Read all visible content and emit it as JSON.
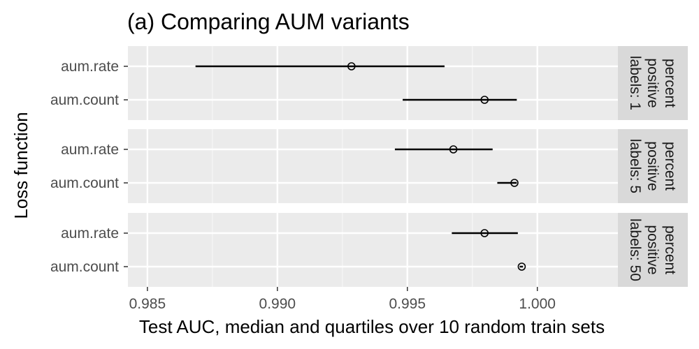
{
  "chart_data": {
    "type": "dot-interval",
    "title": "(a) Comparing AUM variants",
    "xlabel": "Test AUC, median and quartiles over 10 random train sets",
    "ylabel": "Loss function",
    "xlim": [
      0.98425,
      1.0031
    ],
    "x_ticks": [
      0.985,
      0.99,
      0.995,
      1.0
    ],
    "x_tick_labels": [
      "0.985",
      "0.990",
      "0.995",
      "1.000"
    ],
    "y_categories": [
      "aum.rate",
      "aum.count"
    ],
    "grid": true,
    "panels": [
      {
        "strip_label": "percent positive labels: 1",
        "strip_lines": [
          "percent",
          "positive",
          "labels: 1"
        ],
        "rows": [
          {
            "label": "aum.rate",
            "q1": 0.98685,
            "median": 0.99285,
            "q3": 0.99643
          },
          {
            "label": "aum.count",
            "q1": 0.99482,
            "median": 0.99797,
            "q3": 0.99921
          }
        ]
      },
      {
        "strip_label": "percent positive labels: 5",
        "strip_lines": [
          "percent",
          "positive",
          "labels: 5"
        ],
        "rows": [
          {
            "label": "aum.rate",
            "q1": 0.99452,
            "median": 0.99677,
            "q3": 0.99828
          },
          {
            "label": "aum.count",
            "q1": 0.99846,
            "median": 0.99912,
            "q3": 0.99921
          }
        ]
      },
      {
        "strip_label": "percent positive labels: 50",
        "strip_lines": [
          "percent",
          "positive",
          "labels: 50"
        ],
        "rows": [
          {
            "label": "aum.rate",
            "q1": 0.99671,
            "median": 0.99797,
            "q3": 0.99925
          },
          {
            "label": "aum.count",
            "q1": 0.99932,
            "median": 0.9994,
            "q3": 0.99945
          }
        ]
      }
    ]
  }
}
